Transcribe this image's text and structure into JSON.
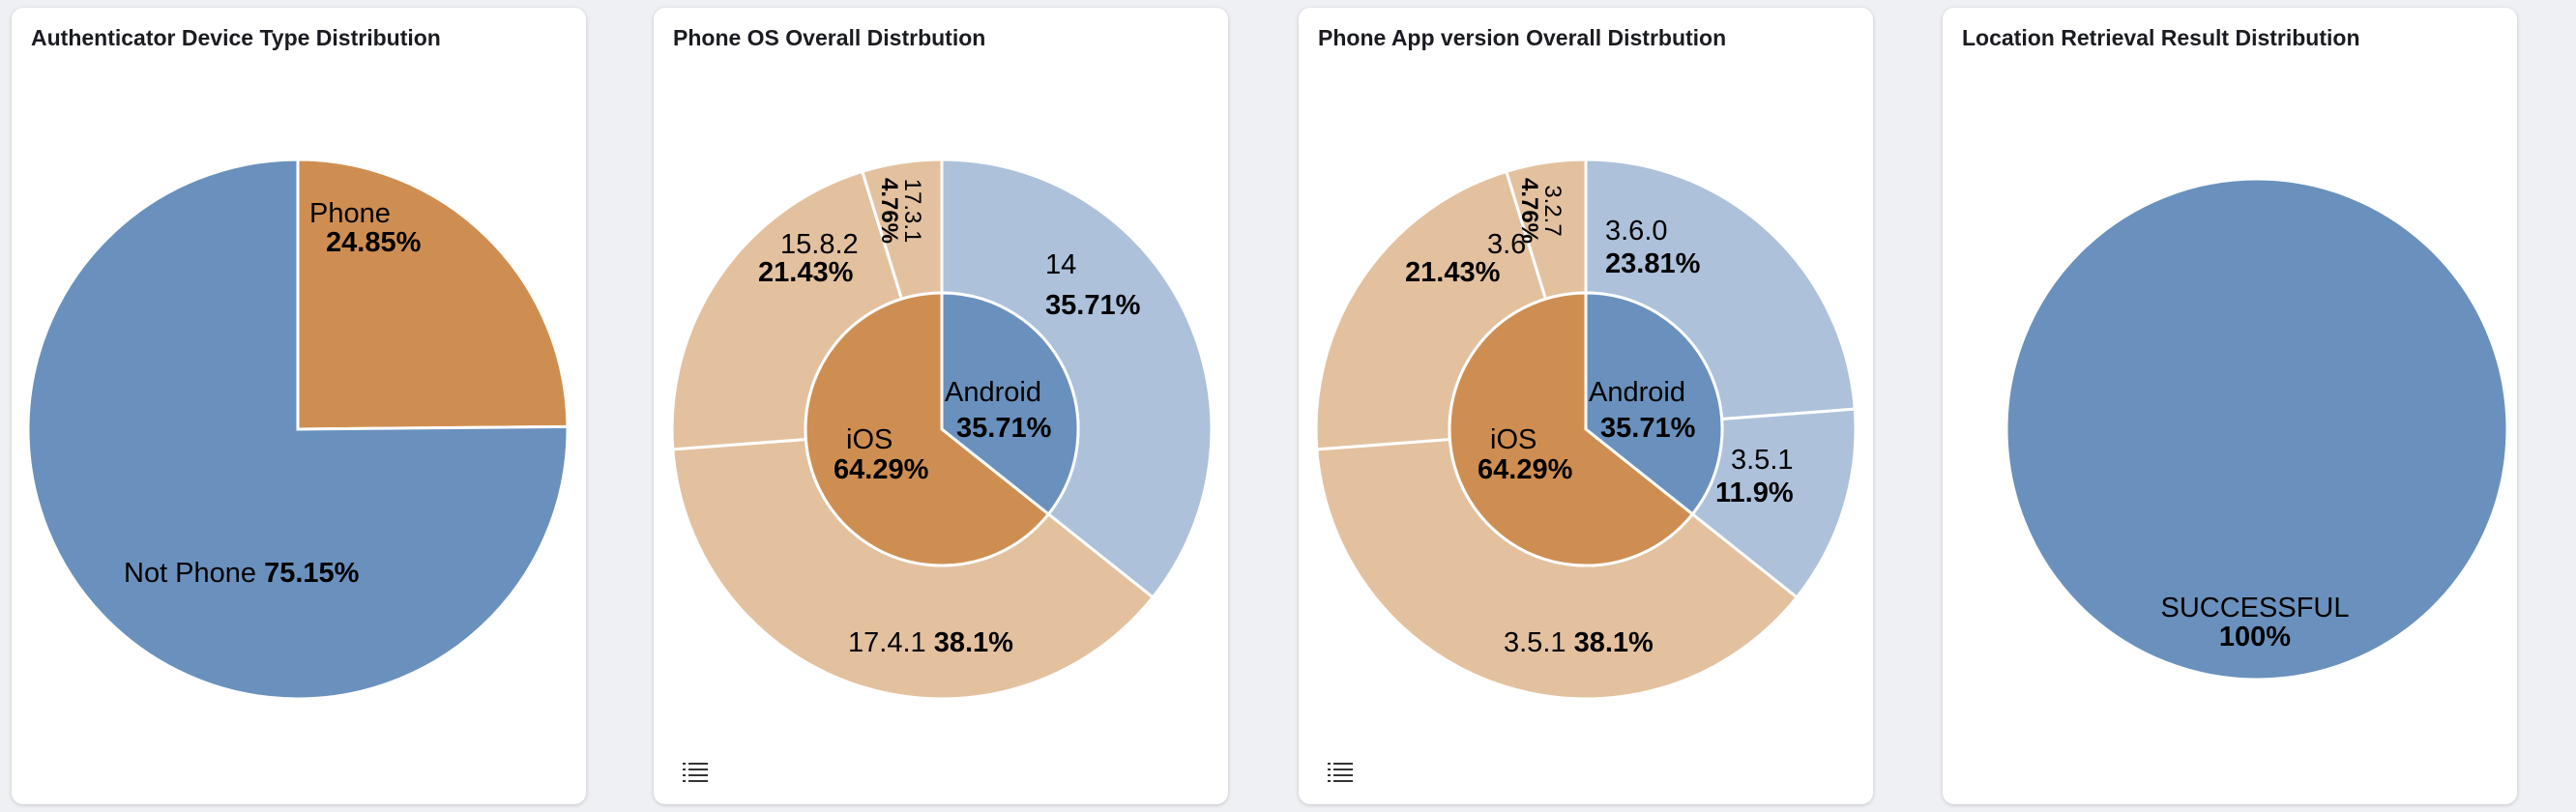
{
  "colors": {
    "blue": "#6a91bd",
    "orange": "#cf8e51",
    "light_blue": "#adc1db",
    "light_orange": "#e3c19f"
  },
  "chart_data": [
    {
      "type": "pie",
      "title": "Authenticator Device Type Distribution",
      "slices": [
        {
          "label": "Phone",
          "value": 24.85,
          "display": "24.85%",
          "color": "#cf8e51"
        },
        {
          "label": "Not Phone",
          "value": 75.15,
          "display": "75.15%",
          "color": "#6a91bd"
        }
      ]
    },
    {
      "type": "pie",
      "title": "Phone OS Overall Distrbution",
      "inner": [
        {
          "label": "Android",
          "value": 35.71,
          "display": "35.71%",
          "color": "#6a91bd"
        },
        {
          "label": "iOS",
          "value": 64.29,
          "display": "64.29%",
          "color": "#cf8e51"
        }
      ],
      "outer": [
        {
          "label": "14",
          "value": 35.71,
          "display": "35.71%",
          "color": "#adc1db"
        },
        {
          "label": "17.4.1",
          "value": 38.1,
          "display": "38.1%",
          "color": "#e3c19f"
        },
        {
          "label": "15.8.2",
          "value": 21.43,
          "display": "21.43%",
          "color": "#e3c19f"
        },
        {
          "label": "17.3.1",
          "value": 4.76,
          "display": "4.76%",
          "color": "#e3c19f"
        }
      ],
      "icon": "list-icon"
    },
    {
      "type": "pie",
      "title": "Phone App version Overall Distrbution",
      "inner": [
        {
          "label": "Android",
          "value": 35.71,
          "display": "35.71%",
          "color": "#6a91bd"
        },
        {
          "label": "iOS",
          "value": 64.29,
          "display": "64.29%",
          "color": "#cf8e51"
        }
      ],
      "outer": [
        {
          "label": "3.6.0",
          "value": 23.81,
          "display": "23.81%",
          "color": "#adc1db"
        },
        {
          "label": "3.5.1",
          "value": 11.9,
          "display": "11.9%",
          "color": "#adc1db"
        },
        {
          "label": "3.5.1",
          "value": 38.1,
          "display": "38.1%",
          "color": "#e3c19f"
        },
        {
          "label": "3.6",
          "value": 21.43,
          "display": "21.43%",
          "color": "#e3c19f"
        },
        {
          "label": "3.2.7",
          "value": 4.76,
          "display": "4.76%",
          "color": "#e3c19f"
        }
      ],
      "icon": "list-icon"
    },
    {
      "type": "pie",
      "title": "Location Retrieval Result Distribution",
      "slices": [
        {
          "label": "SUCCESSFUL",
          "value": 100,
          "display": "100%",
          "color": "#6a91bd"
        }
      ]
    }
  ]
}
